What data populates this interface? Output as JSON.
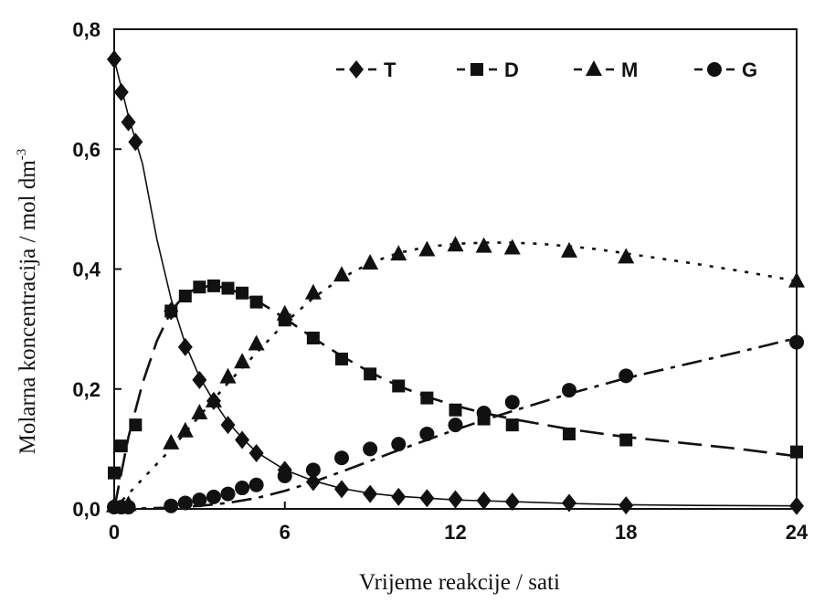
{
  "chart_data": {
    "type": "scatter",
    "title": "",
    "xlabel": "Vrijeme reakcije / sati",
    "ylabel": "Molarna koncentracija / mol dm",
    "ylabel_sup": "-3",
    "xlim": [
      0,
      24
    ],
    "ylim": [
      0,
      0.8
    ],
    "xticks": [
      0,
      6,
      12,
      18,
      24
    ],
    "xtick_labels": [
      "0",
      "6",
      "12",
      "18",
      "24"
    ],
    "yticks": [
      0,
      0.2,
      0.4,
      0.6,
      0.8
    ],
    "ytick_labels": [
      "0,0",
      "0,2",
      "0,4",
      "0,6",
      "0,8"
    ],
    "grid": false,
    "legend_position": "top",
    "series": [
      {
        "name": "T",
        "marker": "diamond",
        "line_style": "solid",
        "points": [
          [
            0,
            0.75
          ],
          [
            0.25,
            0.695
          ],
          [
            0.5,
            0.645
          ],
          [
            0.75,
            0.612
          ],
          [
            2,
            0.33
          ],
          [
            2.5,
            0.27
          ],
          [
            3,
            0.215
          ],
          [
            3.5,
            0.18
          ],
          [
            4,
            0.14
          ],
          [
            4.5,
            0.115
          ],
          [
            5,
            0.093
          ],
          [
            6,
            0.065
          ],
          [
            7,
            0.045
          ],
          [
            8,
            0.033
          ],
          [
            9,
            0.025
          ],
          [
            10,
            0.02
          ],
          [
            11,
            0.018
          ],
          [
            12,
            0.016
          ],
          [
            13,
            0.014
          ],
          [
            14,
            0.012
          ],
          [
            16,
            0.01
          ],
          [
            18,
            0.006
          ],
          [
            24,
            0.005
          ]
        ],
        "curve": [
          [
            0,
            0.75
          ],
          [
            0.5,
            0.655
          ],
          [
            1,
            0.575
          ],
          [
            1.5,
            0.45
          ],
          [
            2,
            0.35
          ],
          [
            2.5,
            0.275
          ],
          [
            3,
            0.22
          ],
          [
            3.5,
            0.18
          ],
          [
            4,
            0.145
          ],
          [
            4.5,
            0.118
          ],
          [
            5,
            0.095
          ],
          [
            6,
            0.065
          ],
          [
            7,
            0.047
          ],
          [
            8,
            0.034
          ],
          [
            9,
            0.026
          ],
          [
            10,
            0.021
          ],
          [
            11,
            0.018
          ],
          [
            12,
            0.015
          ],
          [
            14,
            0.012
          ],
          [
            16,
            0.009
          ],
          [
            18,
            0.007
          ],
          [
            20,
            0.006
          ],
          [
            24,
            0.005
          ]
        ]
      },
      {
        "name": "D",
        "marker": "square",
        "line_style": "dashed",
        "points": [
          [
            0,
            0.06
          ],
          [
            0.25,
            0.105
          ],
          [
            0.75,
            0.14
          ],
          [
            2,
            0.33
          ],
          [
            2.5,
            0.355
          ],
          [
            3,
            0.37
          ],
          [
            3.5,
            0.372
          ],
          [
            4,
            0.368
          ],
          [
            4.5,
            0.36
          ],
          [
            5,
            0.345
          ],
          [
            6,
            0.315
          ],
          [
            7,
            0.285
          ],
          [
            8,
            0.25
          ],
          [
            9,
            0.225
          ],
          [
            10,
            0.205
          ],
          [
            11,
            0.185
          ],
          [
            12,
            0.165
          ],
          [
            13,
            0.15
          ],
          [
            14,
            0.14
          ],
          [
            16,
            0.125
          ],
          [
            18,
            0.115
          ],
          [
            24,
            0.095
          ]
        ],
        "curve": [
          [
            0,
            0.0
          ],
          [
            0.5,
            0.12
          ],
          [
            1,
            0.21
          ],
          [
            1.5,
            0.28
          ],
          [
            2,
            0.33
          ],
          [
            2.5,
            0.358
          ],
          [
            3,
            0.37
          ],
          [
            3.5,
            0.372
          ],
          [
            4,
            0.368
          ],
          [
            5,
            0.348
          ],
          [
            6,
            0.318
          ],
          [
            7,
            0.285
          ],
          [
            8,
            0.255
          ],
          [
            9,
            0.228
          ],
          [
            10,
            0.205
          ],
          [
            11,
            0.187
          ],
          [
            12,
            0.172
          ],
          [
            13,
            0.16
          ],
          [
            14,
            0.15
          ],
          [
            16,
            0.133
          ],
          [
            18,
            0.12
          ],
          [
            20,
            0.11
          ],
          [
            22,
            0.1
          ],
          [
            24,
            0.088
          ]
        ]
      },
      {
        "name": "M",
        "marker": "triangle",
        "line_style": "dotted",
        "points": [
          [
            0,
            0.005
          ],
          [
            0.5,
            0.007
          ],
          [
            2,
            0.11
          ],
          [
            2.5,
            0.13
          ],
          [
            3,
            0.16
          ],
          [
            3.5,
            0.18
          ],
          [
            4,
            0.22
          ],
          [
            4.5,
            0.245
          ],
          [
            5,
            0.275
          ],
          [
            6,
            0.325
          ],
          [
            7,
            0.36
          ],
          [
            8,
            0.39
          ],
          [
            9,
            0.41
          ],
          [
            10,
            0.425
          ],
          [
            11,
            0.432
          ],
          [
            12,
            0.44
          ],
          [
            13,
            0.438
          ],
          [
            14,
            0.435
          ],
          [
            16,
            0.43
          ],
          [
            18,
            0.42
          ],
          [
            24,
            0.38
          ]
        ],
        "curve": [
          [
            0,
            0.0
          ],
          [
            1,
            0.05
          ],
          [
            2,
            0.1
          ],
          [
            3,
            0.155
          ],
          [
            4,
            0.21
          ],
          [
            5,
            0.26
          ],
          [
            6,
            0.31
          ],
          [
            7,
            0.352
          ],
          [
            8,
            0.385
          ],
          [
            9,
            0.41
          ],
          [
            10,
            0.427
          ],
          [
            11,
            0.437
          ],
          [
            12,
            0.442
          ],
          [
            13,
            0.444
          ],
          [
            14,
            0.444
          ],
          [
            15,
            0.442
          ],
          [
            16,
            0.438
          ],
          [
            17,
            0.433
          ],
          [
            18,
            0.426
          ],
          [
            20,
            0.412
          ],
          [
            22,
            0.397
          ],
          [
            24,
            0.38
          ]
        ]
      },
      {
        "name": "G",
        "marker": "circle",
        "line_style": "dash-dot",
        "points": [
          [
            0,
            0.003
          ],
          [
            0.25,
            0.003
          ],
          [
            0.5,
            0.003
          ],
          [
            2,
            0.005
          ],
          [
            2.5,
            0.01
          ],
          [
            3,
            0.015
          ],
          [
            3.5,
            0.02
          ],
          [
            4,
            0.025
          ],
          [
            4.5,
            0.035
          ],
          [
            5,
            0.04
          ],
          [
            6,
            0.055
          ],
          [
            7,
            0.065
          ],
          [
            8,
            0.085
          ],
          [
            9,
            0.1
          ],
          [
            10,
            0.108
          ],
          [
            11,
            0.125
          ],
          [
            12,
            0.14
          ],
          [
            13,
            0.16
          ],
          [
            14,
            0.178
          ],
          [
            16,
            0.198
          ],
          [
            18,
            0.222
          ],
          [
            24,
            0.278
          ]
        ],
        "curve": [
          [
            0,
            0.0
          ],
          [
            2,
            0.002
          ],
          [
            3,
            0.005
          ],
          [
            4,
            0.01
          ],
          [
            5,
            0.018
          ],
          [
            6,
            0.03
          ],
          [
            7,
            0.045
          ],
          [
            8,
            0.062
          ],
          [
            9,
            0.08
          ],
          [
            10,
            0.098
          ],
          [
            11,
            0.115
          ],
          [
            12,
            0.132
          ],
          [
            13,
            0.148
          ],
          [
            14,
            0.163
          ],
          [
            16,
            0.192
          ],
          [
            18,
            0.218
          ],
          [
            20,
            0.24
          ],
          [
            22,
            0.262
          ],
          [
            24,
            0.285
          ]
        ]
      }
    ]
  }
}
